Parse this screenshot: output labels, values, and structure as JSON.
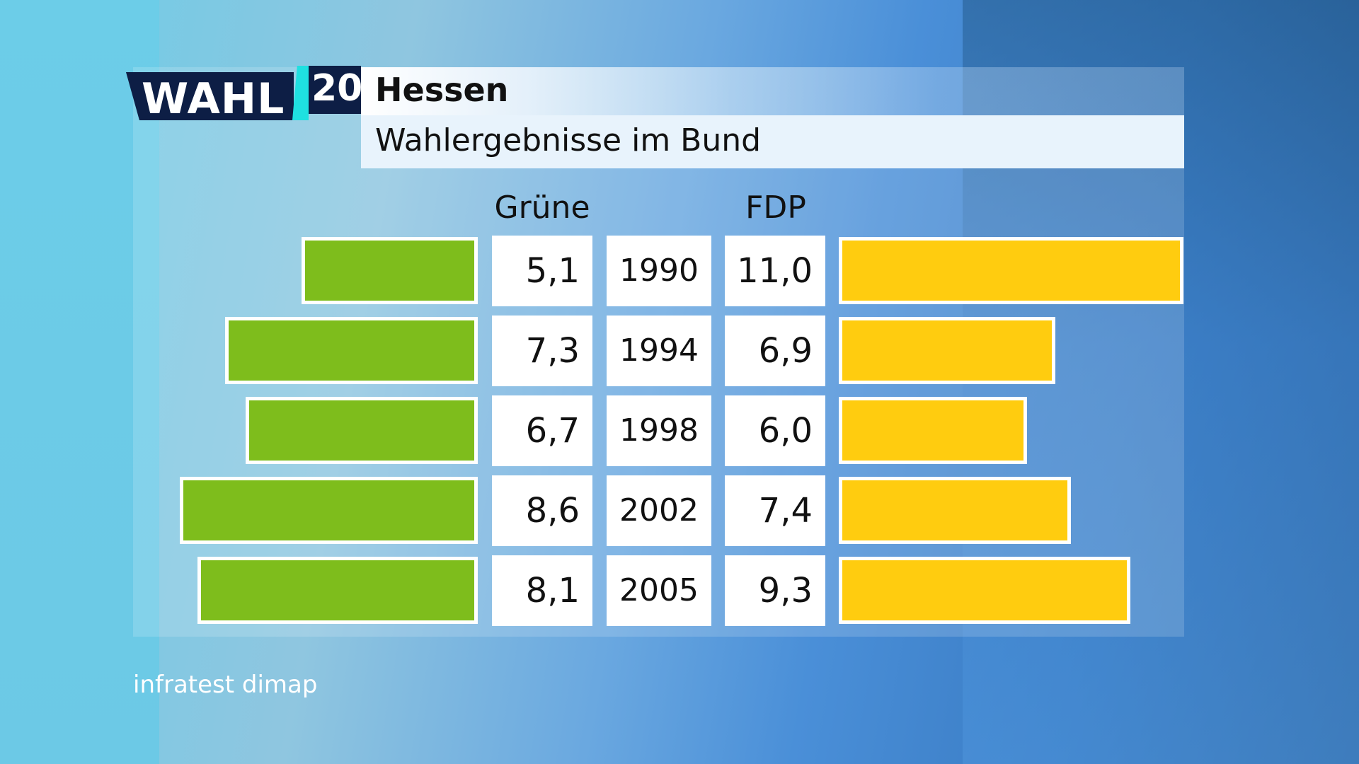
{
  "header": {
    "logo_text": "WAHL",
    "logo_number": "20",
    "title": "Hessen",
    "subtitle": "Wahlergebnisse im Bund"
  },
  "source": "infratest dimap",
  "colors": {
    "gruene": "#7ebd1c",
    "fdp": "#ffcc0f"
  },
  "chart_data": {
    "type": "bar",
    "title": "Wahlergebnisse im Bund",
    "categories": [
      "1990",
      "1994",
      "1998",
      "2002",
      "2005"
    ],
    "series": [
      {
        "name": "Grüne",
        "values": [
          5.1,
          7.3,
          6.7,
          8.6,
          8.1
        ],
        "labels": [
          "5,1",
          "7,3",
          "6,7",
          "8,6",
          "8,1"
        ]
      },
      {
        "name": "FDP",
        "values": [
          11.0,
          6.9,
          6.0,
          7.4,
          9.3
        ],
        "labels": [
          "11,0",
          "6,9",
          "6,0",
          "7,4",
          "9,3"
        ]
      }
    ]
  }
}
